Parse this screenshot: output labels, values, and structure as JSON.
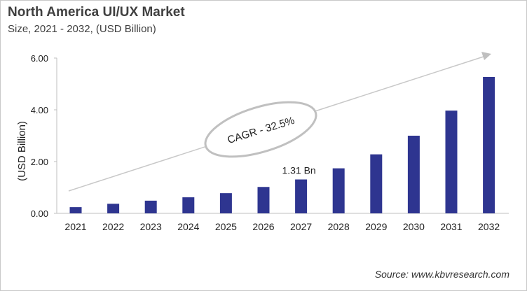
{
  "chart_data": {
    "type": "bar",
    "title": "North America UI/UX Market",
    "subtitle": "Size, 2021 - 2032, (USD Billion)",
    "xlabel": "",
    "ylabel": "(USD Billion)",
    "ylim": [
      0,
      6
    ],
    "yticks": [
      "0.00",
      "2.00",
      "4.00",
      "6.00"
    ],
    "categories": [
      "2021",
      "2022",
      "2023",
      "2024",
      "2025",
      "2026",
      "2027",
      "2028",
      "2029",
      "2030",
      "2031",
      "2032"
    ],
    "values": [
      0.24,
      0.37,
      0.49,
      0.62,
      0.78,
      1.02,
      1.31,
      1.74,
      2.28,
      3.0,
      3.97,
      5.27
    ],
    "data_label": {
      "category": "2027",
      "text": "1.31 Bn"
    },
    "annotation": "CAGR - 32.5%",
    "bar_color": "#2e3590",
    "grid": false,
    "legend": "none"
  },
  "source": "Source: www.kbvresearch.com"
}
